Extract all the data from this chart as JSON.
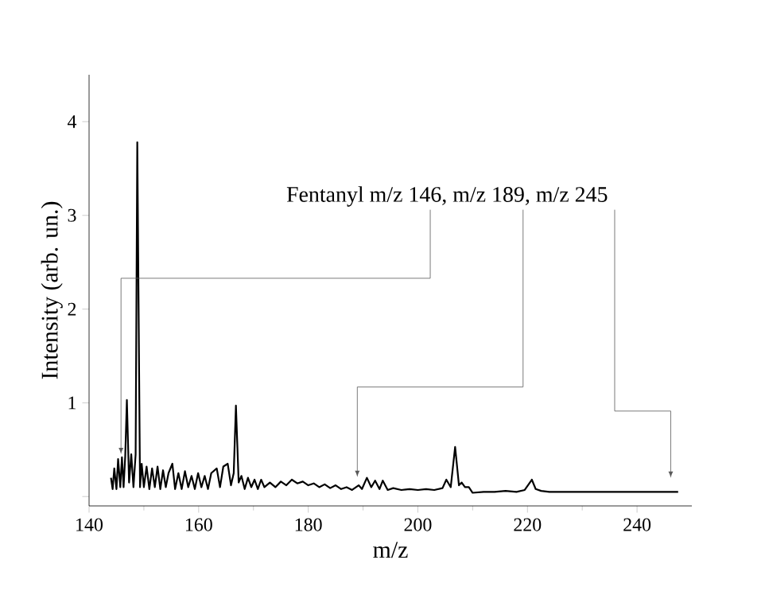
{
  "chart_data": {
    "type": "line",
    "xlabel": "m/z",
    "ylabel": "Intensity (arb. un.)",
    "annotations": [
      "Fentanyl m/z 146, m/z 189, m/z 245"
    ],
    "xlim": [
      140,
      250
    ],
    "ylim": [
      -0.1,
      4.5
    ],
    "xticks": [
      140,
      160,
      180,
      200,
      220,
      240
    ],
    "yticks": [
      {
        "value": 0,
        "label": null
      },
      1,
      2,
      3,
      4
    ],
    "grid": false,
    "marker": "none",
    "line_style": "solid",
    "series": [
      {
        "color": "#000000",
        "x": [
          144.0,
          144.3,
          144.6,
          145.0,
          145.3,
          145.7,
          146.0,
          146.3,
          146.6,
          146.9,
          147.3,
          147.7,
          148.1,
          148.5,
          148.8,
          149.3,
          149.6,
          150.0,
          150.5,
          151.0,
          151.5,
          152.0,
          152.5,
          153.0,
          153.5,
          154.0,
          154.5,
          155.2,
          155.7,
          156.3,
          156.9,
          157.5,
          158.1,
          158.7,
          159.3,
          159.9,
          160.5,
          161.1,
          161.7,
          162.3,
          163.3,
          163.9,
          164.5,
          165.3,
          165.9,
          166.4,
          166.8,
          167.3,
          167.8,
          168.4,
          169.0,
          169.6,
          170.2,
          170.8,
          171.4,
          172.0,
          173.0,
          174.0,
          175.0,
          176.0,
          177.0,
          178.0,
          179.0,
          180.0,
          181.0,
          182.0,
          183.0,
          184.0,
          185.0,
          186.0,
          187.0,
          188.0,
          189.2,
          189.8,
          190.7,
          191.5,
          192.2,
          193.0,
          193.6,
          194.5,
          195.5,
          197.0,
          198.5,
          200.0,
          201.5,
          203.0,
          204.5,
          205.2,
          206.0,
          206.8,
          207.5,
          208.0,
          208.6,
          209.3,
          210.0,
          212.0,
          214.0,
          216.0,
          218.0,
          219.5,
          220.8,
          221.5,
          222.5,
          224.0,
          226.0,
          228.0,
          230.0,
          232.0,
          234.0,
          236.0,
          238.0,
          240.0,
          242.0,
          244.0,
          246.0,
          247.5
        ],
        "values": [
          0.2,
          0.08,
          0.3,
          0.08,
          0.4,
          0.1,
          0.42,
          0.1,
          0.43,
          1.03,
          0.15,
          0.45,
          0.1,
          0.45,
          3.78,
          0.1,
          0.35,
          0.1,
          0.32,
          0.08,
          0.3,
          0.1,
          0.32,
          0.08,
          0.28,
          0.1,
          0.25,
          0.35,
          0.08,
          0.25,
          0.08,
          0.27,
          0.1,
          0.22,
          0.08,
          0.25,
          0.1,
          0.22,
          0.08,
          0.25,
          0.3,
          0.1,
          0.32,
          0.35,
          0.12,
          0.25,
          0.97,
          0.15,
          0.22,
          0.08,
          0.2,
          0.1,
          0.18,
          0.08,
          0.18,
          0.1,
          0.15,
          0.1,
          0.16,
          0.12,
          0.18,
          0.14,
          0.16,
          0.12,
          0.14,
          0.1,
          0.13,
          0.09,
          0.12,
          0.08,
          0.1,
          0.07,
          0.12,
          0.08,
          0.2,
          0.1,
          0.17,
          0.08,
          0.17,
          0.07,
          0.09,
          0.07,
          0.08,
          0.07,
          0.08,
          0.07,
          0.09,
          0.18,
          0.1,
          0.53,
          0.12,
          0.15,
          0.1,
          0.1,
          0.04,
          0.05,
          0.05,
          0.06,
          0.05,
          0.07,
          0.18,
          0.08,
          0.06,
          0.05,
          0.05,
          0.05,
          0.05,
          0.05,
          0.05,
          0.05,
          0.05,
          0.05,
          0.05,
          0.05,
          0.05,
          0.05
        ]
      }
    ]
  }
}
